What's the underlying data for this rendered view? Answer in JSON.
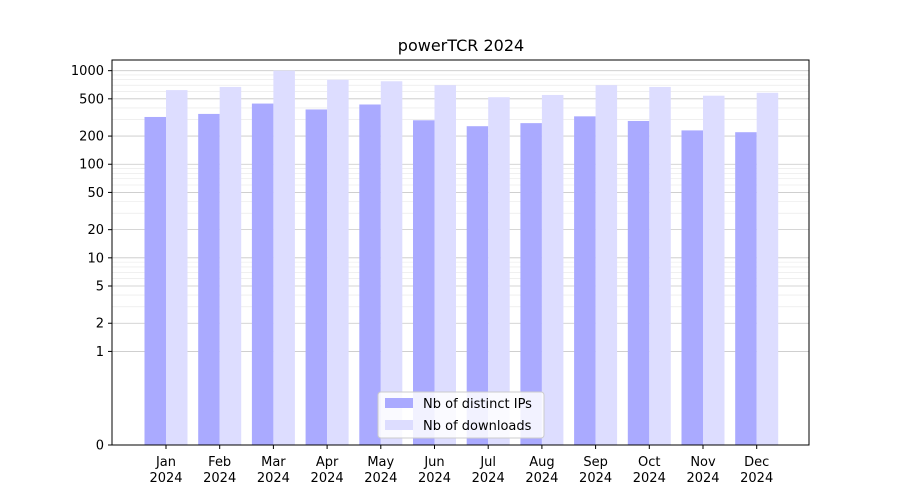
{
  "chart_data": {
    "type": "bar",
    "title": "powerTCR 2024",
    "xlabel": "",
    "ylabel": "",
    "y_scale": "symlog",
    "ylim": [
      0,
      1300
    ],
    "y_ticks": [
      0,
      1,
      2,
      5,
      10,
      20,
      50,
      100,
      200,
      500,
      1000
    ],
    "y_tick_labels": [
      "0",
      "1",
      "2",
      "5",
      "10",
      "20",
      "50",
      "100",
      "200",
      "500",
      "1000"
    ],
    "categories": [
      [
        "Jan",
        "2024"
      ],
      [
        "Feb",
        "2024"
      ],
      [
        "Mar",
        "2024"
      ],
      [
        "Apr",
        "2024"
      ],
      [
        "May",
        "2024"
      ],
      [
        "Jun",
        "2024"
      ],
      [
        "Jul",
        "2024"
      ],
      [
        "Aug",
        "2024"
      ],
      [
        "Sep",
        "2024"
      ],
      [
        "Oct",
        "2024"
      ],
      [
        "Nov",
        "2024"
      ],
      [
        "Dec",
        "2024"
      ]
    ],
    "series": [
      {
        "name": "Nb of distinct IPs",
        "color": "#aaaaff",
        "values": [
          320,
          345,
          445,
          385,
          435,
          295,
          255,
          275,
          325,
          290,
          230,
          220
        ]
      },
      {
        "name": "Nb of downloads",
        "color": "#ddddff",
        "values": [
          620,
          670,
          1000,
          800,
          770,
          700,
          520,
          550,
          700,
          670,
          540,
          580
        ]
      }
    ],
    "grid": true,
    "legend_position": "bottom-center"
  }
}
